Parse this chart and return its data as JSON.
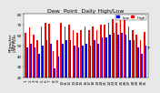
{
  "title": "Dew  Point  Daily High/Low",
  "left_label_line1": "Milwaukee",
  "left_label_line2": "Weather",
  "left_label_line3": "Dew Point",
  "ylabel_right": "°F",
  "background_color": "#e8e8e8",
  "plot_bg_color": "#ffffff",
  "high_color": "#ff0000",
  "low_color": "#0000ff",
  "days": [
    1,
    2,
    3,
    4,
    5,
    6,
    7,
    8,
    9,
    10,
    11,
    12,
    13,
    14,
    15,
    16,
    17,
    18,
    19,
    20,
    21,
    22,
    23,
    24,
    25,
    26,
    27,
    28,
    29,
    30,
    31
  ],
  "highs": [
    62,
    67,
    60,
    55,
    68,
    72,
    71,
    45,
    55,
    72,
    68,
    70,
    65,
    62,
    65,
    68,
    65,
    68,
    65,
    70,
    70,
    72,
    75,
    72,
    74,
    75,
    68,
    65,
    60,
    55,
    63
  ],
  "lows": [
    48,
    52,
    48,
    42,
    50,
    55,
    52,
    28,
    40,
    52,
    55,
    55,
    50,
    48,
    50,
    52,
    50,
    55,
    52,
    58,
    58,
    60,
    62,
    60,
    62,
    60,
    55,
    55,
    48,
    42,
    50
  ],
  "ylim": [
    20,
    80
  ],
  "yticks": [
    20,
    30,
    40,
    50,
    60,
    70,
    80
  ],
  "ytick_labels": [
    "20",
    "30",
    "40",
    "50",
    "60",
    "70",
    "80"
  ],
  "title_fontsize": 4.5,
  "tick_fontsize": 3.0,
  "legend_fontsize": 3.0,
  "bar_width": 0.38,
  "dashed_lines": [
    23.5,
    24.5
  ]
}
